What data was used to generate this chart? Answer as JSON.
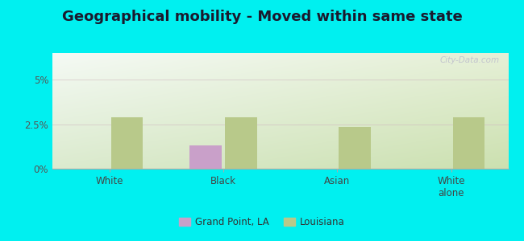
{
  "title": "Geographical mobility - Moved within same state",
  "categories": [
    "White",
    "Black",
    "Asian",
    "White\nalone"
  ],
  "grand_point_values": [
    0.0,
    1.3,
    0.0,
    0.0
  ],
  "louisiana_values": [
    2.9,
    2.9,
    2.35,
    2.9
  ],
  "grand_point_color": "#c9a0c9",
  "louisiana_color": "#b8c98a",
  "background_outer": "#00f0f0",
  "ylim": [
    0,
    6.5
  ],
  "yticks": [
    0,
    2.5,
    5.0
  ],
  "ytick_labels": [
    "0%",
    "2.5%",
    "5%"
  ],
  "grid_color": "#d0b8c0",
  "grid_alpha": 0.5,
  "title_fontsize": 13,
  "bar_width": 0.28,
  "watermark": "City-Data.com"
}
